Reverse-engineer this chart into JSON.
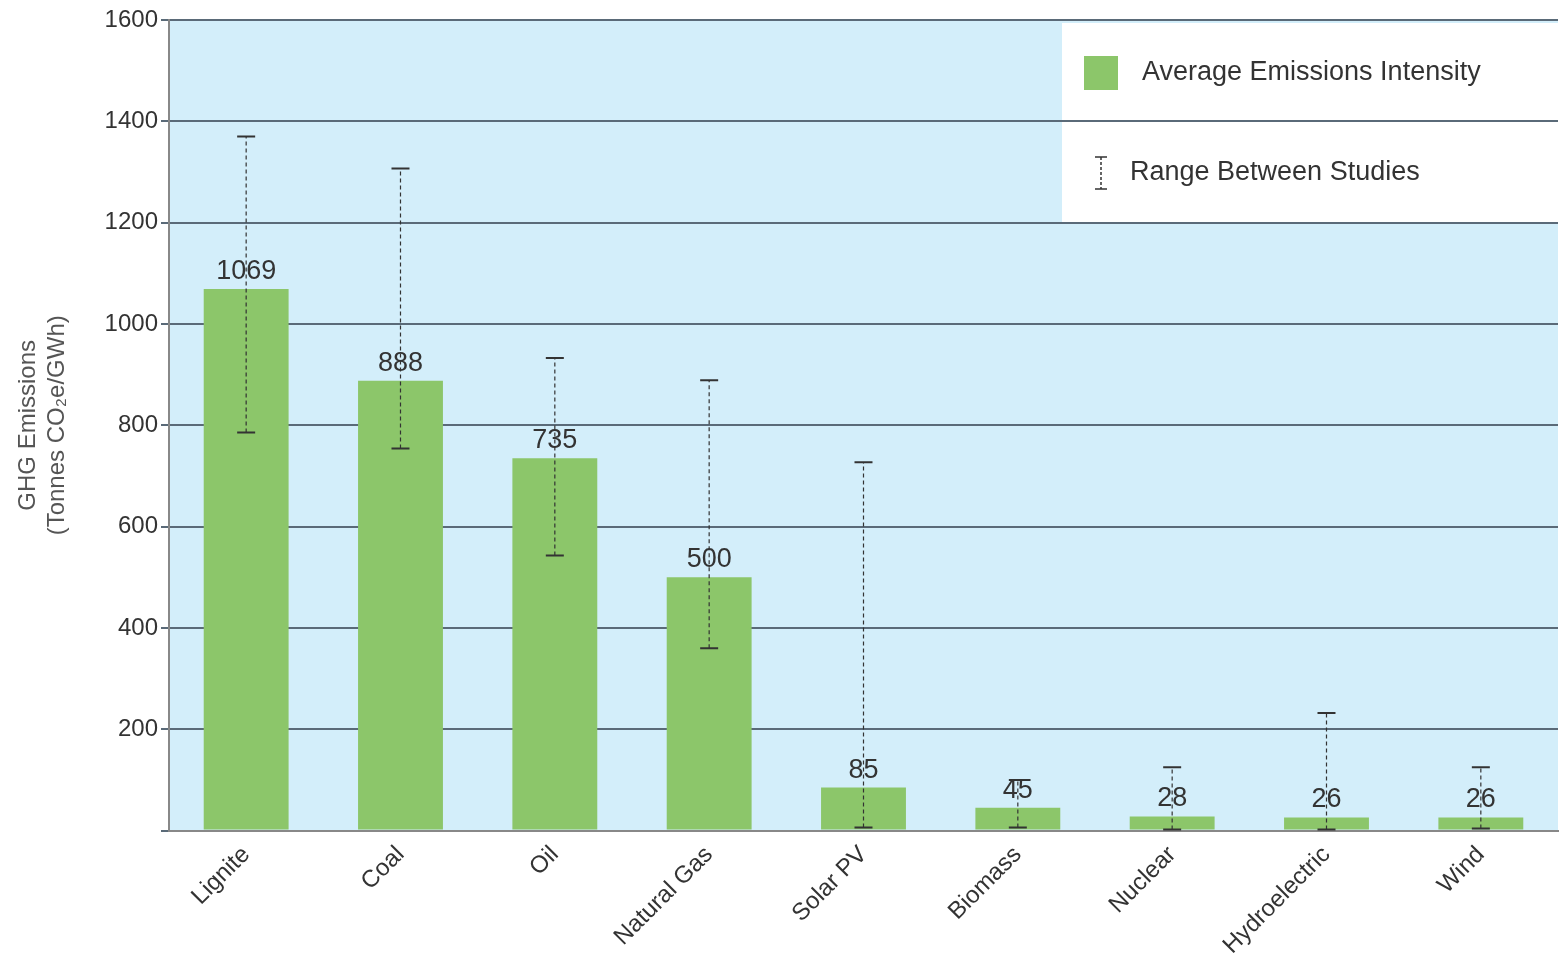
{
  "chart_data": {
    "type": "bar",
    "ylabel": "GHG Emissions\n(Tonnes CO₂e/GWh)",
    "categories": [
      "Lignite",
      "Coal",
      "Oil",
      "Natural Gas",
      "Solar PV",
      "Biomass",
      "Nuclear",
      "Hydroelectric",
      "Wind"
    ],
    "series": [
      {
        "name": "Average Emissions Intensity",
        "color": "#8cc66a",
        "values": [
          1069,
          888,
          735,
          500,
          85,
          45,
          28,
          26,
          26
        ],
        "errors": [
          [
            786,
            1370
          ],
          [
            754,
            1307
          ],
          [
            543,
            933
          ],
          [
            360,
            889
          ],
          [
            6,
            727
          ],
          [
            6,
            100
          ],
          [
            2,
            125
          ],
          [
            2,
            232
          ],
          [
            4,
            125
          ]
        ]
      }
    ],
    "annotations": [
      "Range Between Studies"
    ],
    "data_labels": true,
    "ylim": [
      0,
      1600
    ],
    "yticks": [
      {
        "value": 0,
        "label": null
      },
      200,
      400,
      600,
      800,
      1000,
      1200,
      1400,
      1600
    ],
    "grid": "y",
    "legend": "top right"
  }
}
